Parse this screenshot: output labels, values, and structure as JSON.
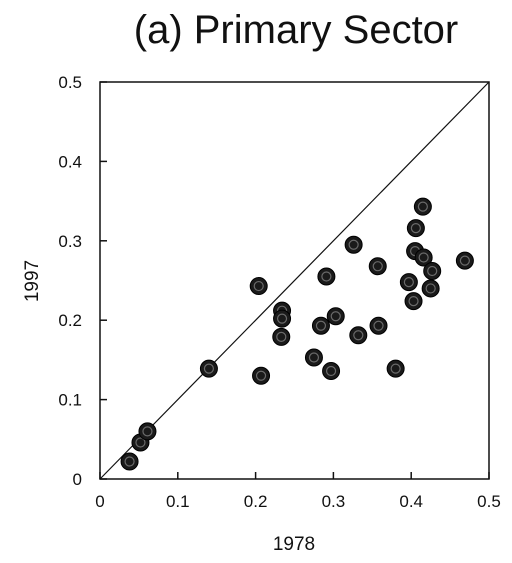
{
  "chart_data": {
    "type": "scatter",
    "title": "(a) Primary Sector",
    "xlabel": "1978",
    "ylabel": "1997",
    "xlim": [
      0,
      0.5
    ],
    "ylim": [
      0,
      0.5
    ],
    "xticks": [
      "0",
      "0.1",
      "0.2",
      "0.3",
      "0.4",
      "0.5"
    ],
    "yticks": [
      "0",
      "0.1",
      "0.2",
      "0.3",
      "0.4",
      "0.5"
    ],
    "grid": false,
    "reference_line": "y = x",
    "marker_color": "#1a1a1a",
    "points": [
      {
        "x": 0.038,
        "y": 0.022
      },
      {
        "x": 0.052,
        "y": 0.046
      },
      {
        "x": 0.061,
        "y": 0.06
      },
      {
        "x": 0.14,
        "y": 0.139
      },
      {
        "x": 0.204,
        "y": 0.243
      },
      {
        "x": 0.207,
        "y": 0.13
      },
      {
        "x": 0.234,
        "y": 0.212
      },
      {
        "x": 0.234,
        "y": 0.202
      },
      {
        "x": 0.233,
        "y": 0.179
      },
      {
        "x": 0.275,
        "y": 0.153
      },
      {
        "x": 0.284,
        "y": 0.193
      },
      {
        "x": 0.291,
        "y": 0.255
      },
      {
        "x": 0.297,
        "y": 0.136
      },
      {
        "x": 0.303,
        "y": 0.205
      },
      {
        "x": 0.326,
        "y": 0.295
      },
      {
        "x": 0.332,
        "y": 0.181
      },
      {
        "x": 0.357,
        "y": 0.268
      },
      {
        "x": 0.358,
        "y": 0.193
      },
      {
        "x": 0.38,
        "y": 0.139
      },
      {
        "x": 0.397,
        "y": 0.248
      },
      {
        "x": 0.403,
        "y": 0.224
      },
      {
        "x": 0.405,
        "y": 0.287
      },
      {
        "x": 0.406,
        "y": 0.316
      },
      {
        "x": 0.415,
        "y": 0.343
      },
      {
        "x": 0.416,
        "y": 0.279
      },
      {
        "x": 0.425,
        "y": 0.24
      },
      {
        "x": 0.427,
        "y": 0.262
      },
      {
        "x": 0.469,
        "y": 0.275
      }
    ]
  }
}
